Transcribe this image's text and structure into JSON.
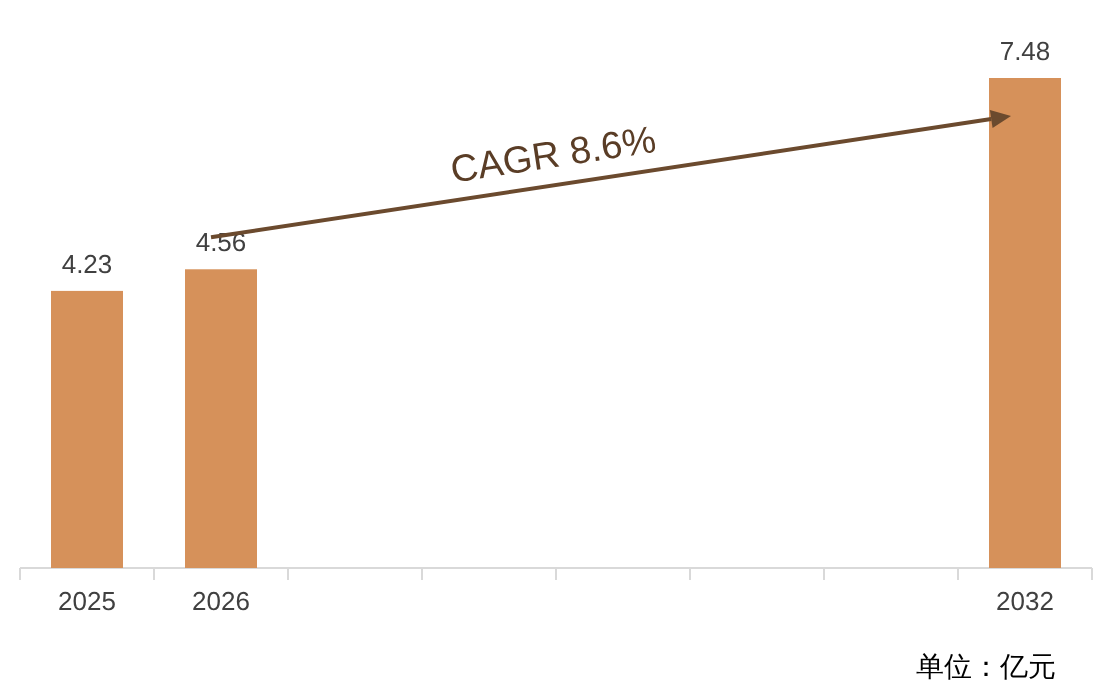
{
  "chart_data": {
    "type": "bar",
    "categories": [
      "2025",
      "2026",
      null,
      null,
      null,
      null,
      null,
      "2032"
    ],
    "values": [
      4.23,
      4.56,
      null,
      null,
      null,
      null,
      null,
      7.48
    ],
    "color": "#d6915a",
    "data_labels": true,
    "annotations": [
      "CAGR 8.6%",
      "单位：亿元"
    ]
  }
}
